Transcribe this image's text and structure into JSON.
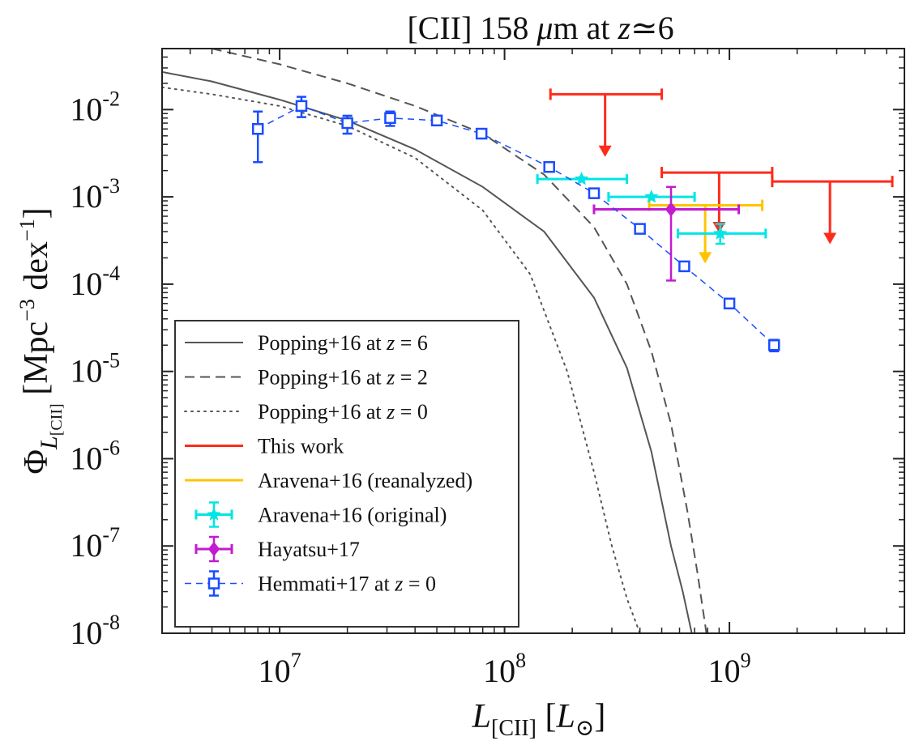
{
  "chart_data": {
    "type": "scatter",
    "title": "[CII] 158 μm at z≃6",
    "xlabel": "L[CII] [L⊙]",
    "ylabel": "ΦL[CII] [Mpc⁻³ dex⁻¹]",
    "xscale": "log",
    "yscale": "log",
    "xlim": [
      3000000,
      6000000000
    ],
    "ylim": [
      1e-08,
      0.05
    ],
    "x_ticks": [
      {
        "value": 10000000,
        "label": "10",
        "exp": "7"
      },
      {
        "value": 100000000,
        "label": "10",
        "exp": "8"
      },
      {
        "value": 1000000000,
        "label": "10",
        "exp": "9"
      }
    ],
    "y_ticks": [
      {
        "value": 0.01,
        "label": "10",
        "exp": "-2"
      },
      {
        "value": 0.001,
        "label": "10",
        "exp": "-3"
      },
      {
        "value": 0.0001,
        "label": "10",
        "exp": "-4"
      },
      {
        "value": 1e-05,
        "label": "10",
        "exp": "-5"
      },
      {
        "value": 1e-06,
        "label": "10",
        "exp": "-6"
      },
      {
        "value": 1e-07,
        "label": "10",
        "exp": "-7"
      },
      {
        "value": 1e-08,
        "label": "10",
        "exp": "-8"
      }
    ],
    "grid": false,
    "legend_position": "bottom-left",
    "colors": {
      "red": "#ff2a1a",
      "yellow": "#ffc400",
      "cyan": "#00e5e5",
      "magenta": "#c21bd1",
      "blue": "#1a4dff",
      "gray": "#555555"
    },
    "series": [
      {
        "name": "Popping+16 at z = 6",
        "label_plain": "Popping+16 at ",
        "label_z": "= 6",
        "kind": "curve",
        "style": "solid",
        "color": "#555555",
        "x": [
          3000000,
          5000000,
          10000000,
          20000000,
          40000000,
          80000000,
          150000000,
          250000000,
          350000000,
          450000000,
          550000000,
          620000000,
          680000000
        ],
        "y": [
          0.027,
          0.021,
          0.013,
          0.0075,
          0.0035,
          0.0013,
          0.0004,
          7e-05,
          1.1e-05,
          1.2e-06,
          1e-07,
          3e-08,
          1e-08
        ]
      },
      {
        "name": "Popping+16 at z = 2",
        "label_plain": "Popping+16 at ",
        "label_z": "= 2",
        "kind": "curve",
        "style": "dashed",
        "color": "#555555",
        "x": [
          5000000,
          10000000,
          20000000,
          40000000,
          80000000,
          150000000,
          250000000,
          350000000,
          450000000,
          550000000,
          650000000,
          720000000,
          790000000
        ],
        "y": [
          0.05,
          0.033,
          0.02,
          0.011,
          0.0053,
          0.0018,
          0.00045,
          0.0001,
          1.7e-05,
          2.5e-06,
          2.5e-07,
          5e-08,
          1e-08
        ]
      },
      {
        "name": "Popping+16 at z = 0",
        "label_plain": "Popping+16 at ",
        "label_z": "= 0",
        "kind": "curve",
        "style": "dotted",
        "color": "#555555",
        "x": [
          3000000,
          5000000,
          10000000,
          20000000,
          40000000,
          80000000,
          130000000,
          190000000,
          250000000,
          300000000,
          350000000,
          400000000
        ],
        "y": [
          0.018,
          0.015,
          0.011,
          0.0065,
          0.0028,
          0.0007,
          0.00013,
          1e-05,
          7e-07,
          1e-07,
          2.5e-08,
          1e-08
        ]
      },
      {
        "name": "This work",
        "kind": "upper_limit",
        "color": "#ff2a1a",
        "points": [
          {
            "x": 280000000,
            "xerr": [
              160000000,
              500000000
            ],
            "y": 0.015,
            "y_arrow": 0.003
          },
          {
            "x": 900000000,
            "xerr": [
              500000000,
              1550000000
            ],
            "y": 0.0019,
            "y_arrow": 0.0004
          },
          {
            "x": 2800000000,
            "xerr": [
              1550000000,
              5300000000
            ],
            "y": 0.0015,
            "y_arrow": 0.0003
          }
        ]
      },
      {
        "name": "Aravena+16 (reanalyzed)",
        "kind": "upper_limit",
        "color": "#ffc400",
        "points": [
          {
            "x": 780000000,
            "xerr": [
              440000000,
              1400000000
            ],
            "y": 0.0008,
            "y_arrow": 0.00018
          }
        ]
      },
      {
        "name": "Aravena+16 (original)",
        "kind": "errorbar",
        "marker": "star",
        "color": "#00e5e5",
        "points": [
          {
            "x": 220000000,
            "xerr": [
              140000000,
              350000000
            ],
            "y": 0.0016
          },
          {
            "x": 450000000,
            "xerr": [
              290000000,
              700000000
            ],
            "y": 0.001
          },
          {
            "x": 910000000,
            "xerr": [
              590000000,
              1450000000
            ],
            "y": 0.00038,
            "yerr": [
              0.00029,
              0.00049
            ]
          }
        ]
      },
      {
        "name": "Hayatsu+17",
        "kind": "errorbar",
        "marker": "diamond",
        "color": "#c21bd1",
        "points": [
          {
            "x": 550000000,
            "xerr": [
              250000000,
              1100000000
            ],
            "y": 0.00072,
            "yerr": [
              0.00011,
              0.0013
            ]
          }
        ]
      },
      {
        "name": "Hemmati+17 at z = 0",
        "label_plain": "Hemmati+17 at ",
        "label_z": "= 0",
        "kind": "errorbar",
        "marker": "square",
        "line": "dashed",
        "color": "#1a4dff",
        "points": [
          {
            "x": 8000000,
            "y": 0.006,
            "yerr": [
              0.0025,
              0.0095
            ]
          },
          {
            "x": 12500000,
            "y": 0.011,
            "yerr": [
              0.0082,
              0.014
            ]
          },
          {
            "x": 20000000,
            "y": 0.007,
            "yerr": [
              0.0053,
              0.0085
            ]
          },
          {
            "x": 31000000,
            "y": 0.008,
            "yerr": [
              0.0065,
              0.0095
            ]
          },
          {
            "x": 50000000,
            "y": 0.0075
          },
          {
            "x": 79000000,
            "y": 0.0053
          },
          {
            "x": 158000000,
            "y": 0.0022
          },
          {
            "x": 250000000,
            "y": 0.0011
          },
          {
            "x": 400000000,
            "y": 0.00043
          },
          {
            "x": 630000000,
            "y": 0.00016
          },
          {
            "x": 1000000000,
            "y": 6e-05
          },
          {
            "x": 1580000000,
            "y": 2e-05,
            "yerr": [
              1.7e-05,
              2.3e-05
            ]
          }
        ]
      }
    ]
  }
}
